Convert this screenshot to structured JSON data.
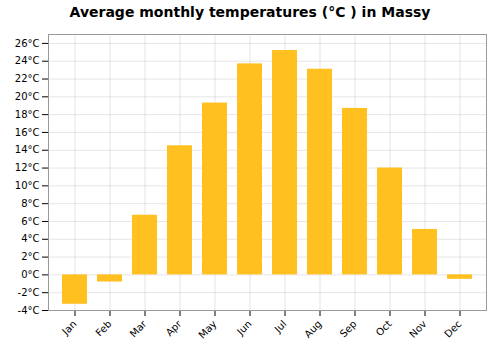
{
  "chart_data": {
    "type": "bar",
    "title": "Average monthly temperatures (°C ) in Massy",
    "categories": [
      "Jan",
      "Feb",
      "Mar",
      "Apr",
      "May",
      "Jun",
      "Jul",
      "Aug",
      "Sep",
      "Oct",
      "Nov",
      "Dec"
    ],
    "values": [
      -3.3,
      -0.8,
      6.7,
      14.5,
      19.3,
      23.7,
      25.2,
      23.1,
      18.7,
      12.0,
      5.1,
      -0.5
    ],
    "color": "#FFC020",
    "ylim": [
      -4,
      27
    ],
    "yticks": [
      {
        "value": -4,
        "label": "-4°C"
      },
      {
        "value": -2,
        "label": "-2°C"
      },
      {
        "value": 0,
        "label": "0°C"
      },
      {
        "value": 2,
        "label": "2°C"
      },
      {
        "value": 4,
        "label": "4°C"
      },
      {
        "value": 6,
        "label": "6°C"
      },
      {
        "value": 8,
        "label": "8°C"
      },
      {
        "value": 10,
        "label": "10°C"
      },
      {
        "value": 12,
        "label": "12°C"
      },
      {
        "value": 14,
        "label": "14°C"
      },
      {
        "value": 16,
        "label": "16°C"
      },
      {
        "value": 18,
        "label": "18°C"
      },
      {
        "value": 20,
        "label": "20°C"
      },
      {
        "value": 22,
        "label": "22°C"
      },
      {
        "value": 24,
        "label": "24°C"
      },
      {
        "value": 26,
        "label": "26°C"
      }
    ],
    "grid": true
  }
}
